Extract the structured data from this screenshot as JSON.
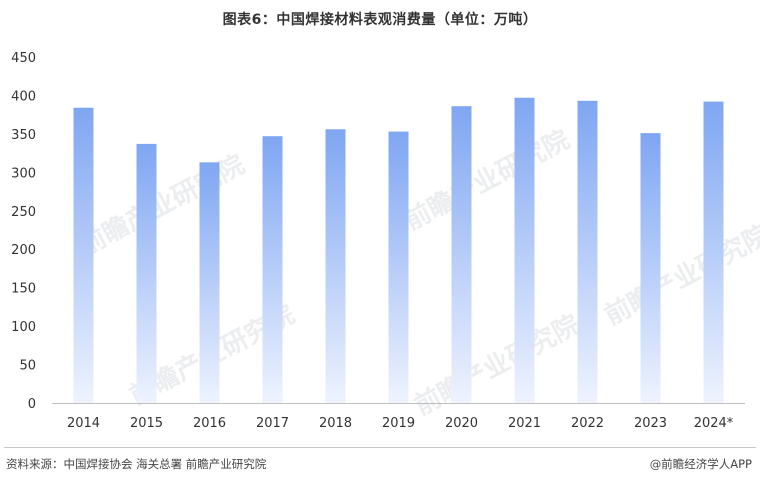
{
  "title": "图表6：中国焊接材料表观消费量（单位：万吨）",
  "source_text": "资料来源：中国焊接协会 海关总署  前瞻产业研究院",
  "brand_text": "@前瞻经济学人APP",
  "watermark_text": "前瞻产业研究院",
  "colors": {
    "bar_top": "#7fa6f2",
    "bar_bottom": "#eef3fe",
    "axis": "#bfbfbf",
    "text": "#333333"
  },
  "chart_data": {
    "type": "bar",
    "title": "图表6：中国焊接材料表观消费量（单位：万吨）",
    "xlabel": "",
    "ylabel": "",
    "categories": [
      "2014",
      "2015",
      "2016",
      "2017",
      "2018",
      "2019",
      "2020",
      "2021",
      "2022",
      "2023",
      "2024*"
    ],
    "values": [
      384,
      337,
      313,
      347,
      356,
      353,
      386,
      397,
      393,
      351,
      392
    ],
    "ylim": [
      0,
      450
    ],
    "yticks": [
      0,
      50,
      100,
      150,
      200,
      250,
      300,
      350,
      400,
      450
    ],
    "grid": false,
    "legend": "none"
  }
}
